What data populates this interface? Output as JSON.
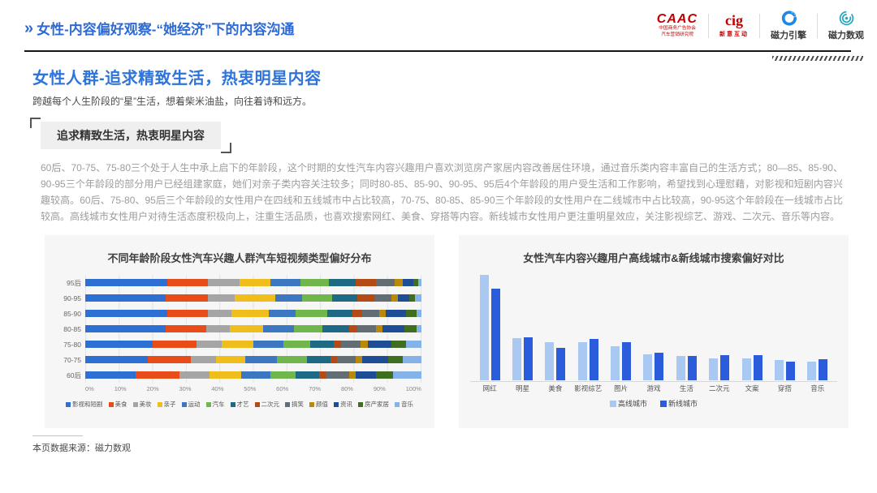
{
  "header": {
    "chevron": "»",
    "title": "女性-内容偏好观察-“她经济”下的内容沟通",
    "logos": {
      "caac": {
        "name": "CAAC",
        "line1": "中国商务广告协会",
        "line2": "汽车营销研究院"
      },
      "cig": {
        "name": "cig",
        "sub": "新意互动"
      },
      "engine": {
        "label": "磁力引擎"
      },
      "datavision": {
        "label": "磁力数观"
      }
    }
  },
  "main": {
    "title": "女性人群-追求精致生活，热衷明星内容",
    "subtitle": "跨越每个人生阶段的“星”生活，想着柴米油盐，向往着诗和远方。",
    "tag": "追求精致生活，热衷明星内容",
    "paragraph": "60后、70-75、75-80三个处于人生中承上启下的年龄段，这个时期的女性汽车内容兴趣用户喜欢浏览房产家居内容改善居住环境，通过音乐类内容丰富自己的生活方式；80—85、85-90、90-95三个年龄段的部分用户已经组建家庭，她们对亲子类内容关注较多；同时80-85、85-90、90-95、95后4个年龄段的用户受生活和工作影响，希望找到心理慰藉，对影视和短剧内容兴趣较高。60后、75-80、95后三个年龄段的女性用户在四线和五线城市中占比较高，70-75、80-85、85-90三个年龄段的女性用户在二线城市中占比较高，90-95这个年龄段在一线城市占比较高。高线城市女性用户对待生活态度积极向上，注重生活品质，也喜欢搜索网红、美食、穿搭等内容。新线城市女性用户更注重明星效应，关注影视综艺、游戏、二次元、音乐等内容。"
  },
  "footer": {
    "source": "本页数据来源：磁力数观"
  },
  "chart_data": [
    {
      "type": "bar",
      "subtype": "stacked-horizontal",
      "title": "不同年龄阶段女性汽车兴趣人群汽车短视频类型偏好分布",
      "categories": [
        "95后",
        "90-95",
        "85-90",
        "80-85",
        "75-80",
        "70-75",
        "60后"
      ],
      "x_ticks": [
        "0%",
        "10%",
        "20%",
        "30%",
        "40%",
        "50%",
        "60%",
        "70%",
        "80%",
        "90%",
        "100%"
      ],
      "xlim": [
        0,
        100
      ],
      "unit": "%",
      "grid": true,
      "legend_position": "bottom",
      "note": "values estimated from bar segment lengths; each row sums to 100%",
      "series": [
        {
          "name": "影视和短剧",
          "color": "#2E6FD4",
          "values": [
            24.5,
            24,
            24.5,
            24,
            20,
            18.5,
            15
          ]
        },
        {
          "name": "美食",
          "color": "#E84C18",
          "values": [
            12,
            12.5,
            12,
            12,
            13,
            13,
            13
          ]
        },
        {
          "name": "美妆",
          "color": "#A5A5A5",
          "values": [
            9.5,
            8,
            7,
            7,
            7.5,
            7.5,
            9
          ]
        },
        {
          "name": "亲子",
          "color": "#EFBE1D",
          "values": [
            9,
            12,
            11,
            10,
            9.5,
            8.5,
            9.5
          ]
        },
        {
          "name": "运动",
          "color": "#3D77C2",
          "values": [
            9,
            8,
            8,
            9,
            9,
            9.5,
            8.5
          ]
        },
        {
          "name": "汽车",
          "color": "#71B64C",
          "values": [
            8.5,
            9,
            9.5,
            8.5,
            8,
            9,
            7.5
          ]
        },
        {
          "name": "才艺",
          "color": "#1E6A85",
          "values": [
            8,
            7.5,
            7.5,
            8,
            7,
            7,
            7
          ]
        },
        {
          "name": "二次元",
          "color": "#B44B16",
          "values": [
            6,
            5,
            3,
            2.5,
            2,
            2,
            2
          ]
        },
        {
          "name": "搞笑",
          "color": "#626D74",
          "values": [
            5.5,
            5,
            5,
            5.5,
            6,
            5.5,
            7
          ]
        },
        {
          "name": "颜值",
          "color": "#B8890B",
          "values": [
            2.5,
            2,
            2,
            2,
            2,
            2,
            2
          ]
        },
        {
          "name": "资讯",
          "color": "#1E4D96",
          "values": [
            3,
            3.5,
            6,
            6.5,
            7,
            7.5,
            6
          ]
        },
        {
          "name": "房产家居",
          "color": "#3F6E21",
          "values": [
            1.5,
            1.5,
            3,
            3.5,
            4.5,
            4.5,
            5
          ]
        },
        {
          "name": "音乐",
          "color": "#85B3E8",
          "values": [
            1,
            2,
            1.5,
            1.5,
            4.5,
            5.5,
            8.5
          ]
        }
      ]
    },
    {
      "type": "bar",
      "subtype": "grouped-vertical",
      "title": "女性汽车内容兴趣用户高线城市&新线城市搜索偏好对比",
      "categories": [
        "网红",
        "明星",
        "美食",
        "影视综艺",
        "图片",
        "游戏",
        "生活",
        "二次元",
        "文案",
        "穿搭",
        "音乐"
      ],
      "legend_position": "bottom",
      "note": "no y-axis shown in source; values are relative heights scaled to max = 100",
      "series": [
        {
          "name": "高线城市",
          "color": "#A9C9F2",
          "values": [
            100,
            40,
            36,
            36,
            32,
            25,
            23,
            21,
            21,
            19,
            18
          ]
        },
        {
          "name": "新线城市",
          "color": "#2A5CDC",
          "values": [
            87,
            41,
            31,
            39,
            36,
            26,
            23,
            24,
            24,
            18,
            20
          ]
        }
      ]
    }
  ]
}
